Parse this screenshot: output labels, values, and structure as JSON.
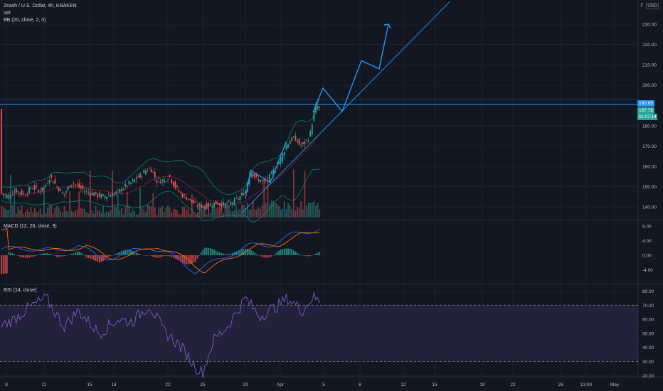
{
  "chart_data": [
    {
      "type": "candlestick",
      "title": "Zcash / U.S. Dollar, 4h, KRAKEN",
      "overlays": [
        "Vol",
        "BB (20, close, 2, 0)"
      ],
      "y_ticks": [
        "230.00",
        "220.00",
        "210.00",
        "200.00",
        "180.00",
        "170.00",
        "160.00",
        "150.00",
        "140.00"
      ],
      "ylim": [
        135,
        238
      ],
      "price_labels": {
        "last": "190.65",
        "current": "187.76",
        "countdown": "01:07:14"
      },
      "projection_peaks": [
        186.7,
        198.5,
        212,
        208,
        230
      ],
      "horizontal_level": 190.6,
      "currency_label": "USD"
    },
    {
      "type": "line",
      "title": "MACD (12, 26, close, 9)",
      "y_ticks": [
        "8.00",
        "4.00",
        "0.00",
        "-4.00"
      ],
      "ylim": [
        -6.5,
        10
      ]
    },
    {
      "type": "line",
      "title": "RSI (14, close)",
      "y_ticks": [
        "80.00",
        "70.00",
        "60.00",
        "50.00",
        "40.00",
        "30.00",
        "20.00"
      ],
      "ylim": [
        17,
        83
      ],
      "bands": [
        30,
        70
      ]
    }
  ],
  "x_ticks": [
    "8",
    "11",
    "15",
    "18",
    "22",
    "25",
    "29",
    "Apr",
    "5",
    "8",
    "12",
    "15",
    "19",
    "22",
    "26",
    "13:00",
    "May"
  ],
  "colors": {
    "background": "#131722",
    "up": "#26a69a",
    "down": "#ef5350",
    "projection": "#2196f3",
    "macd": "#2962ff",
    "signal": "#ff6d00",
    "rsi": "#7e57c2",
    "bb_band": "#089981",
    "bb_basis": "#f23645"
  },
  "ui": {
    "top_right_label": "2",
    "currency": "USD"
  }
}
